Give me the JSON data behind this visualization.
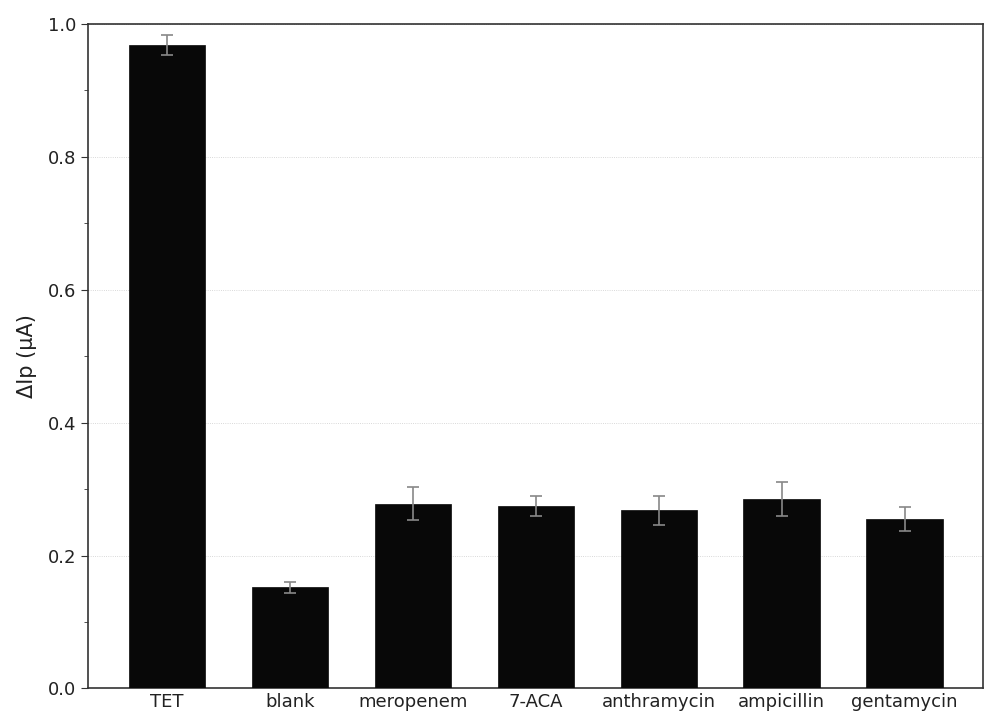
{
  "categories": [
    "TET",
    "blank",
    "meropenem",
    "7-ACA",
    "anthramycin",
    "ampicillin",
    "gentamycin"
  ],
  "values": [
    0.968,
    0.152,
    0.278,
    0.275,
    0.268,
    0.285,
    0.255
  ],
  "errors": [
    0.015,
    0.008,
    0.025,
    0.015,
    0.022,
    0.025,
    0.018
  ],
  "bar_color": "#080808",
  "error_color": "#888888",
  "ylabel": "ΔIp (μA)",
  "ylim": [
    0.0,
    1.0
  ],
  "yticks": [
    0.0,
    0.2,
    0.4,
    0.6,
    0.8,
    1.0
  ],
  "background_color": "#ffffff",
  "axes_background_color": "#ffffff",
  "bar_width": 0.62,
  "ylabel_fontsize": 15,
  "tick_fontsize": 13,
  "xlabel_fontsize": 13,
  "spine_color": "#333333"
}
